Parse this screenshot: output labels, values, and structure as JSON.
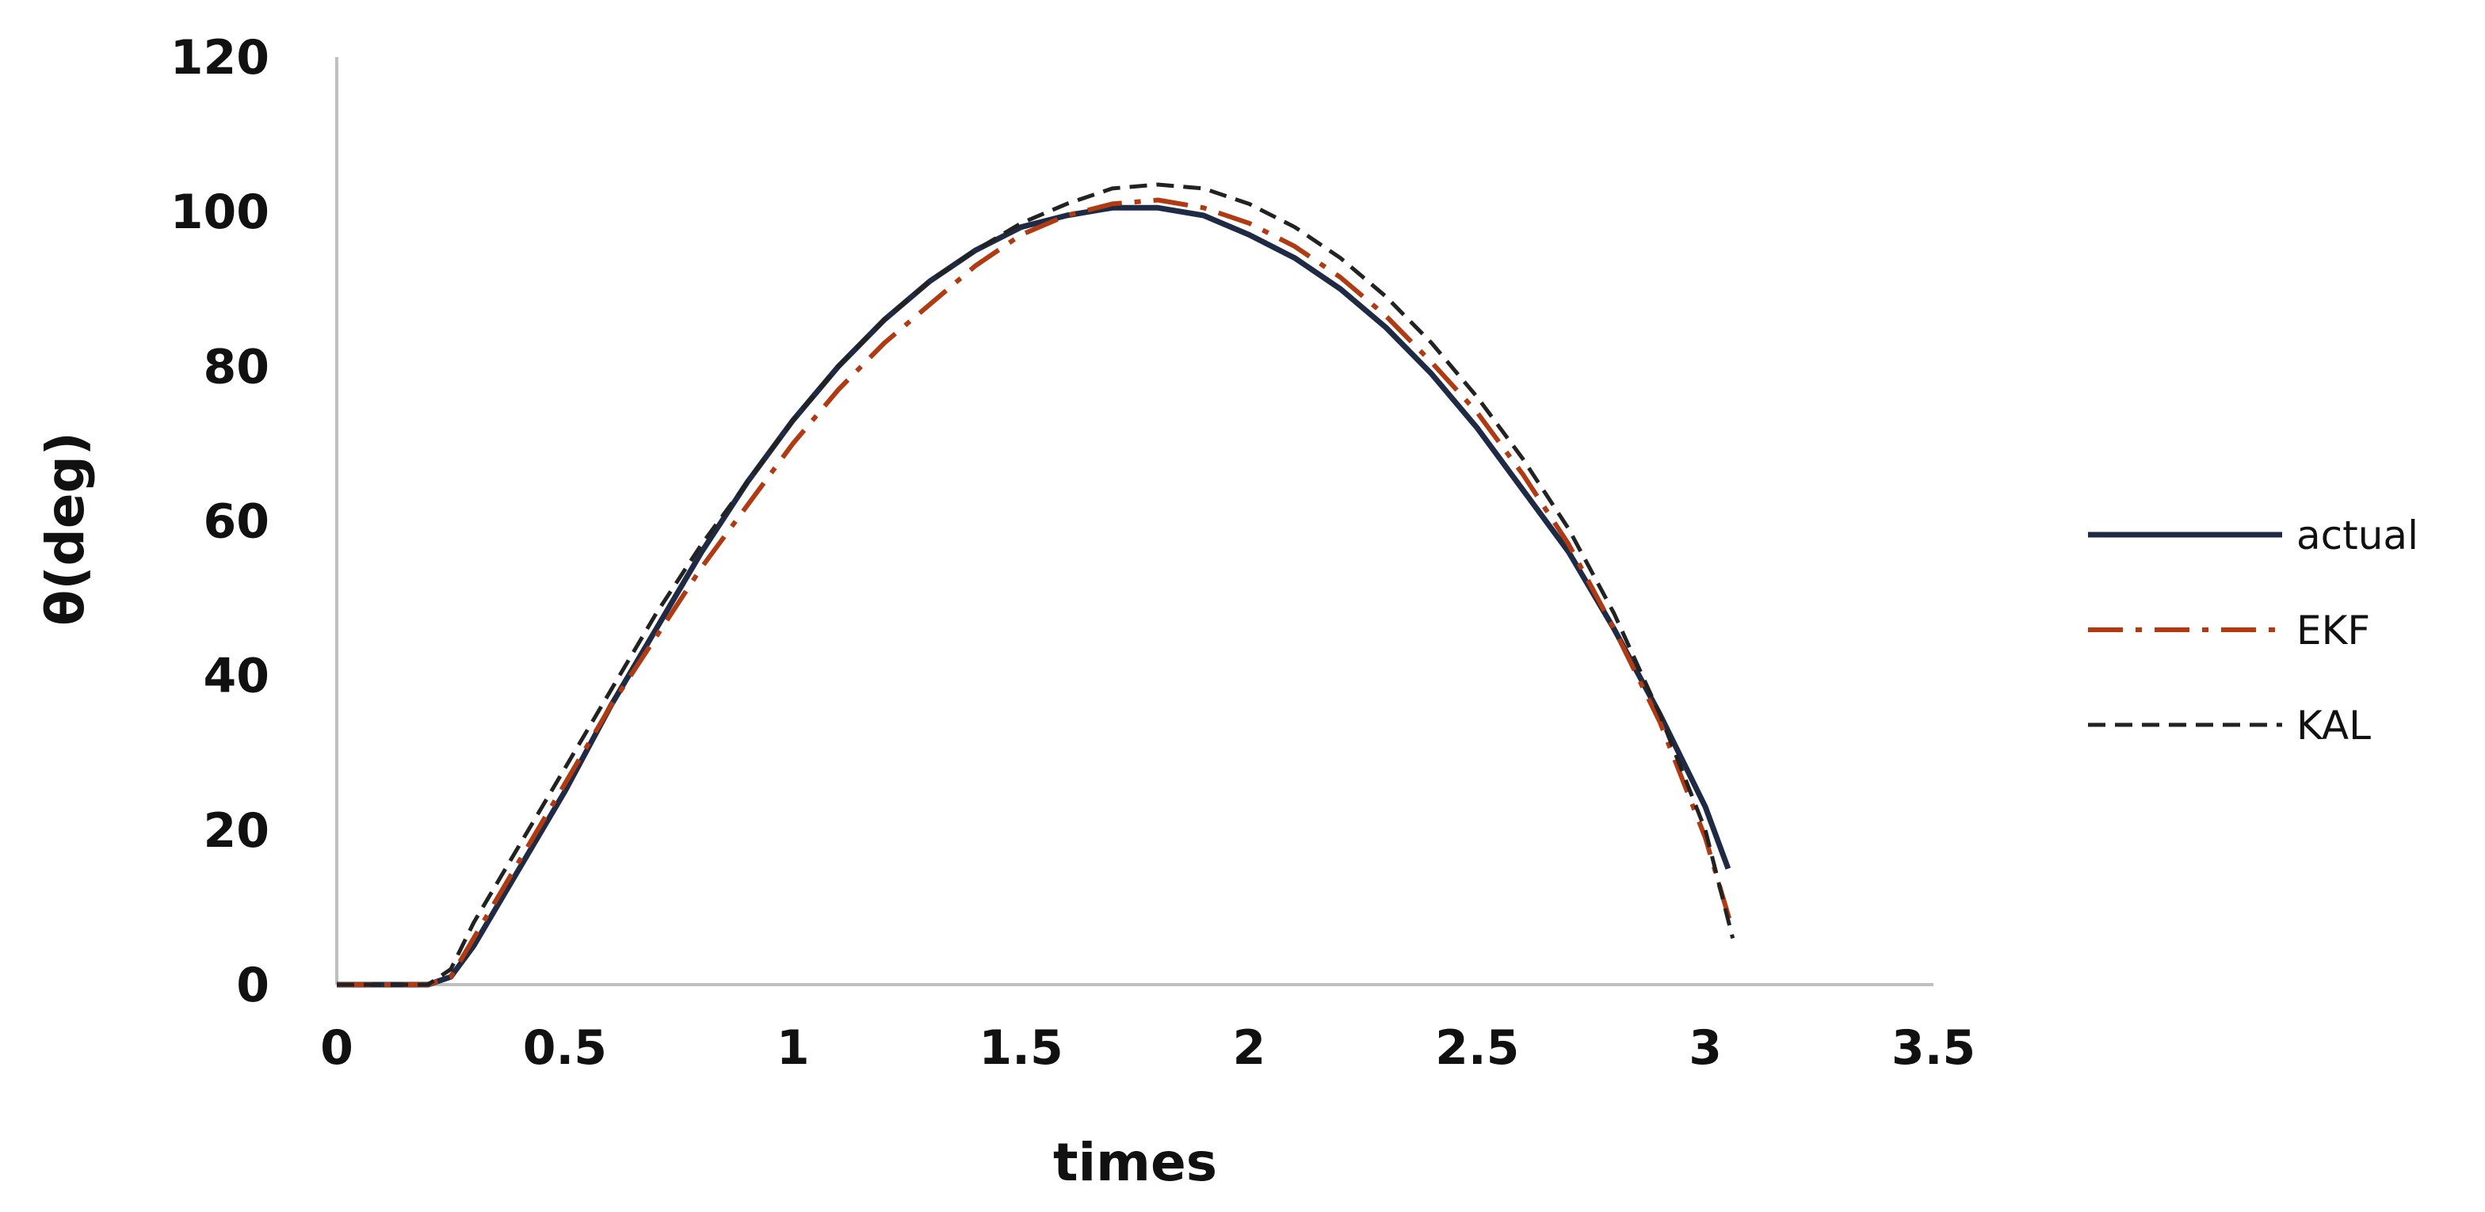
{
  "chart_data": {
    "type": "line",
    "title": "",
    "xlabel": "times",
    "ylabel": "θ(deg)",
    "xlim": [
      0,
      3.5
    ],
    "ylim": [
      0,
      120
    ],
    "x_ticks": [
      0,
      0.5,
      1,
      1.5,
      2,
      2.5,
      3,
      3.5
    ],
    "x_tick_labels": [
      "0",
      "0.5",
      "1",
      "1.5",
      "2",
      "2.5",
      "3",
      "3.5"
    ],
    "y_ticks": [
      0,
      20,
      40,
      60,
      80,
      100,
      120
    ],
    "y_tick_labels": [
      "0",
      "20",
      "40",
      "60",
      "80",
      "100",
      "120"
    ],
    "grid": false,
    "legend_position": "right",
    "series": [
      {
        "name": "actual",
        "color": "#1f2a44",
        "style": "solid",
        "points": [
          [
            0,
            0
          ],
          [
            0.2,
            0
          ],
          [
            0.25,
            1
          ],
          [
            0.3,
            5
          ],
          [
            0.4,
            15
          ],
          [
            0.5,
            25
          ],
          [
            0.6,
            36
          ],
          [
            0.7,
            46
          ],
          [
            0.8,
            56
          ],
          [
            0.9,
            65
          ],
          [
            1.0,
            73
          ],
          [
            1.1,
            80
          ],
          [
            1.2,
            86
          ],
          [
            1.3,
            91
          ],
          [
            1.4,
            95
          ],
          [
            1.5,
            98
          ],
          [
            1.6,
            99.5
          ],
          [
            1.7,
            100.5
          ],
          [
            1.8,
            100.5
          ],
          [
            1.9,
            99.5
          ],
          [
            2.0,
            97
          ],
          [
            2.1,
            94
          ],
          [
            2.2,
            90
          ],
          [
            2.3,
            85
          ],
          [
            2.4,
            79
          ],
          [
            2.5,
            72
          ],
          [
            2.6,
            64
          ],
          [
            2.7,
            56
          ],
          [
            2.8,
            46
          ],
          [
            2.9,
            35
          ],
          [
            3.0,
            23
          ],
          [
            3.05,
            15
          ]
        ]
      },
      {
        "name": "EKF",
        "color": "#b03a12",
        "style": "dash-dot",
        "points": [
          [
            0,
            0
          ],
          [
            0.2,
            0
          ],
          [
            0.25,
            1
          ],
          [
            0.3,
            6
          ],
          [
            0.4,
            16
          ],
          [
            0.5,
            26
          ],
          [
            0.6,
            36
          ],
          [
            0.7,
            45
          ],
          [
            0.8,
            54
          ],
          [
            0.9,
            62
          ],
          [
            1.0,
            70
          ],
          [
            1.1,
            77
          ],
          [
            1.2,
            83
          ],
          [
            1.3,
            88
          ],
          [
            1.4,
            93
          ],
          [
            1.5,
            97
          ],
          [
            1.6,
            99.5
          ],
          [
            1.7,
            101
          ],
          [
            1.8,
            101.5
          ],
          [
            1.9,
            100.5
          ],
          [
            2.0,
            98.5
          ],
          [
            2.1,
            95.5
          ],
          [
            2.2,
            91.5
          ],
          [
            2.3,
            86.5
          ],
          [
            2.4,
            80.5
          ],
          [
            2.5,
            74
          ],
          [
            2.6,
            66
          ],
          [
            2.7,
            57
          ],
          [
            2.8,
            46
          ],
          [
            2.9,
            34
          ],
          [
            3.0,
            19
          ],
          [
            3.06,
            7
          ]
        ]
      },
      {
        "name": "KAL",
        "color": "#222222",
        "style": "dashed",
        "points": [
          [
            0,
            0
          ],
          [
            0.2,
            0
          ],
          [
            0.25,
            2
          ],
          [
            0.3,
            8
          ],
          [
            0.4,
            18
          ],
          [
            0.5,
            28
          ],
          [
            0.6,
            38
          ],
          [
            0.7,
            48
          ],
          [
            0.8,
            57
          ],
          [
            0.9,
            65
          ],
          [
            1.0,
            73
          ],
          [
            1.1,
            80
          ],
          [
            1.2,
            86
          ],
          [
            1.3,
            91
          ],
          [
            1.4,
            95
          ],
          [
            1.5,
            98.5
          ],
          [
            1.6,
            101
          ],
          [
            1.7,
            103
          ],
          [
            1.8,
            103.5
          ],
          [
            1.9,
            103
          ],
          [
            2.0,
            101
          ],
          [
            2.1,
            98
          ],
          [
            2.2,
            94
          ],
          [
            2.3,
            89
          ],
          [
            2.4,
            83
          ],
          [
            2.5,
            76
          ],
          [
            2.6,
            68
          ],
          [
            2.7,
            59
          ],
          [
            2.8,
            48
          ],
          [
            2.9,
            35
          ],
          [
            3.0,
            20
          ],
          [
            3.06,
            6
          ]
        ]
      }
    ]
  }
}
